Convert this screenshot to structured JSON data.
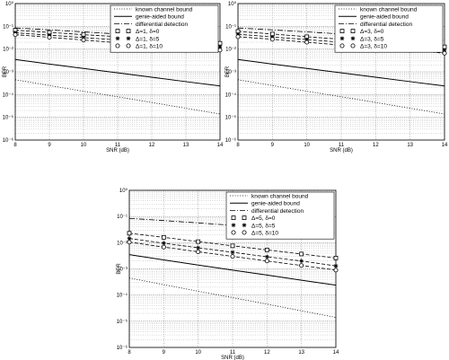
{
  "chart_data": [
    {
      "type": "line",
      "xlabel": "SNR (dB)",
      "ylabel": "BER",
      "xlim": [
        8,
        14
      ],
      "xticks": [
        "8",
        "9",
        "10",
        "11",
        "12",
        "13",
        "14"
      ],
      "yscale": "log",
      "ylim": [
        1e-06,
        1
      ],
      "yticks": [
        "10⁰",
        "10⁻¹",
        "10⁻²",
        "10⁻³",
        "10⁻⁴",
        "10⁻⁵",
        "10⁻⁶"
      ],
      "grid": true,
      "legend_position": "top-right",
      "x": [
        8,
        9,
        10,
        11,
        12,
        13,
        14
      ],
      "series": [
        {
          "name": "known channel bound",
          "style": "dotted",
          "marker": "none",
          "values": [
            0.00045,
            0.00025,
            0.00014,
            8e-05,
            4.5e-05,
            2.5e-05,
            1.4e-05
          ]
        },
        {
          "name": "genie-aided bound",
          "style": "solid",
          "marker": "none",
          "values": [
            0.0035,
            0.0022,
            0.0014,
            0.0009,
            0.00058,
            0.00037,
            0.00024
          ]
        },
        {
          "name": "differential detection",
          "style": "dashdot",
          "marker": "none",
          "values": [
            0.085,
            0.07,
            0.057,
            0.046,
            0.037,
            0.03,
            0.024
          ]
        },
        {
          "name": "Δ=1, δ=0",
          "style": "dashed",
          "marker": "square",
          "values": [
            0.068,
            0.054,
            0.043,
            0.035,
            0.028,
            0.0225,
            0.018
          ]
        },
        {
          "name": "Δ=1, δ=5",
          "style": "dashed",
          "marker": "star",
          "values": [
            0.052,
            0.041,
            0.032,
            0.025,
            0.02,
            0.016,
            0.0125
          ]
        },
        {
          "name": "Δ=1, δ=10",
          "style": "dashed",
          "marker": "circle",
          "values": [
            0.043,
            0.033,
            0.025,
            0.019,
            0.015,
            0.0117,
            0.009
          ]
        }
      ]
    },
    {
      "type": "line",
      "xlabel": "SNR (dB)",
      "ylabel": "BER",
      "xlim": [
        8,
        14
      ],
      "xticks": [
        "8",
        "9",
        "10",
        "11",
        "12",
        "13",
        "14"
      ],
      "yscale": "log",
      "ylim": [
        1e-06,
        1
      ],
      "yticks": [
        "10⁰",
        "10⁻¹",
        "10⁻²",
        "10⁻³",
        "10⁻⁴",
        "10⁻⁵",
        "10⁻⁶"
      ],
      "grid": true,
      "legend_position": "top-right",
      "x": [
        8,
        9,
        10,
        11,
        12,
        13,
        14
      ],
      "series": [
        {
          "name": "known channel bound",
          "style": "dotted",
          "marker": "none",
          "values": [
            0.00045,
            0.00025,
            0.00014,
            8e-05,
            4.5e-05,
            2.5e-05,
            1.4e-05
          ]
        },
        {
          "name": "genie-aided bound",
          "style": "solid",
          "marker": "none",
          "values": [
            0.0035,
            0.0022,
            0.0014,
            0.0009,
            0.00058,
            0.00037,
            0.00024
          ]
        },
        {
          "name": "differential detection",
          "style": "dashdot",
          "marker": "none",
          "values": [
            0.085,
            0.07,
            0.057,
            0.046,
            0.037,
            0.03,
            0.024
          ]
        },
        {
          "name": "Δ=3, δ=0",
          "style": "dashed",
          "marker": "square",
          "values": [
            0.06,
            0.046,
            0.035,
            0.027,
            0.021,
            0.016,
            0.0125
          ]
        },
        {
          "name": "Δ=3, δ=5",
          "style": "dashed",
          "marker": "star",
          "values": [
            0.045,
            0.034,
            0.026,
            0.02,
            0.015,
            0.0115,
            0.0088
          ]
        },
        {
          "name": "Δ=3, δ=10",
          "style": "dashed",
          "marker": "circle",
          "values": [
            0.035,
            0.027,
            0.02,
            0.015,
            0.0115,
            0.0088,
            0.0066
          ]
        }
      ]
    },
    {
      "type": "line",
      "xlabel": "SNR (dB)",
      "ylabel": "BER",
      "xlim": [
        8,
        14
      ],
      "xticks": [
        "8",
        "9",
        "10",
        "11",
        "12",
        "13",
        "14"
      ],
      "yscale": "log",
      "ylim": [
        1e-06,
        1
      ],
      "yticks": [
        "10⁰",
        "10⁻¹",
        "10⁻²",
        "10⁻³",
        "10⁻⁴",
        "10⁻⁵",
        "10⁻⁶"
      ],
      "grid": true,
      "legend_position": "top-right",
      "x": [
        8,
        9,
        10,
        11,
        12,
        13,
        14
      ],
      "series": [
        {
          "name": "known channel bound",
          "style": "dotted",
          "marker": "none",
          "values": [
            0.00045,
            0.00025,
            0.00014,
            8e-05,
            4.5e-05,
            2.5e-05,
            1.4e-05
          ]
        },
        {
          "name": "genie-aided bound",
          "style": "solid",
          "marker": "none",
          "values": [
            0.0035,
            0.0022,
            0.0014,
            0.0009,
            0.00058,
            0.00037,
            0.00024
          ]
        },
        {
          "name": "differential detection",
          "style": "dashdot",
          "marker": "none",
          "values": [
            0.085,
            0.07,
            0.057,
            0.046,
            0.037,
            0.03,
            0.024
          ]
        },
        {
          "name": "Δ=5, δ=0",
          "style": "dashed",
          "marker": "square",
          "values": [
            0.023,
            0.016,
            0.011,
            0.0076,
            0.0053,
            0.0037,
            0.0026
          ]
        },
        {
          "name": "Δ=5, δ=5",
          "style": "dashed",
          "marker": "star",
          "values": [
            0.0145,
            0.0096,
            0.0064,
            0.0043,
            0.0029,
            0.002,
            0.0013
          ]
        },
        {
          "name": "Δ=5, δ=10",
          "style": "dashed",
          "marker": "circle",
          "values": [
            0.0105,
            0.0068,
            0.0045,
            0.003,
            0.002,
            0.00135,
            0.0009
          ]
        }
      ]
    }
  ]
}
